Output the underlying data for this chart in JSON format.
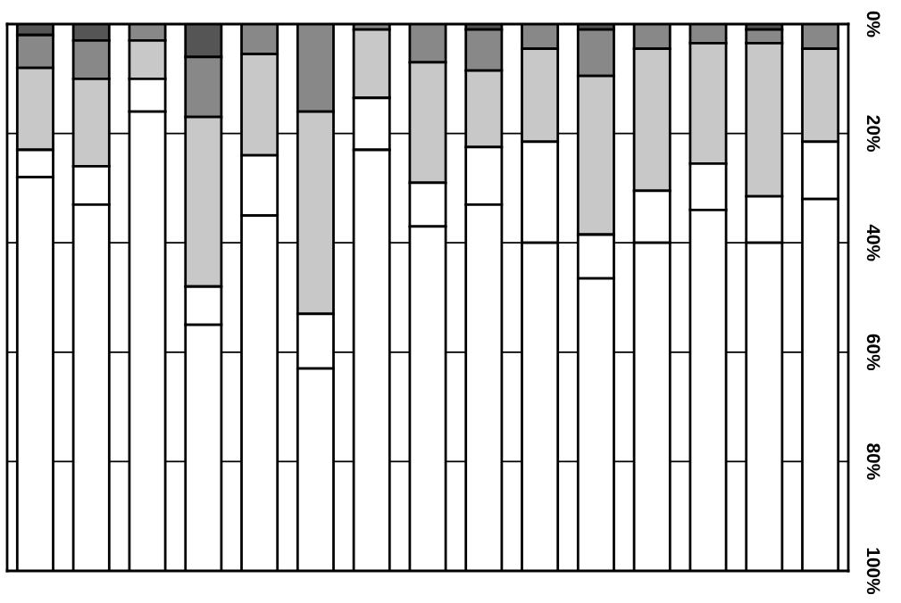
{
  "chart_data": {
    "type": "bar",
    "stacked": true,
    "categories": [
      null,
      null,
      null,
      null,
      null,
      null,
      null,
      null,
      null,
      null,
      null,
      null,
      null,
      null,
      null
    ],
    "series": [
      {
        "color": "#555555",
        "values": [
          2,
          3,
          0,
          6,
          null,
          null,
          0,
          0,
          1,
          0,
          1,
          0,
          0,
          1,
          null
        ]
      },
      {
        "color": "#888888",
        "values": [
          6,
          7,
          3,
          11,
          5.5,
          16,
          1,
          7,
          7.5,
          4.5,
          8.5,
          4.5,
          3.5,
          2.5,
          4.5
        ]
      },
      {
        "color": "#c8c8c8",
        "values": [
          15,
          16,
          7,
          31,
          18.5,
          37,
          12.5,
          22,
          14,
          17,
          29,
          26,
          22,
          28,
          17
        ]
      },
      {
        "color": "#ffffff",
        "values": [
          5,
          7,
          6,
          7,
          11,
          10,
          9.5,
          8,
          10.5,
          18.5,
          8,
          9.5,
          8.5,
          8.5,
          10.5
        ]
      },
      {
        "color": "#ffffff",
        "values": [
          72,
          67,
          84,
          45,
          65,
          37,
          77,
          63,
          67,
          60,
          53.5,
          60,
          66,
          60,
          68
        ]
      }
    ],
    "ylim": [
      100,
      0
    ],
    "yticks": [
      {
        "value": 0,
        "label": "0%"
      },
      {
        "value": 20,
        "label": "20%"
      },
      {
        "value": 40,
        "label": "40%"
      },
      {
        "value": 60,
        "label": "60%"
      },
      {
        "value": 80,
        "label": "80%"
      },
      {
        "value": 100,
        "label": "100%"
      }
    ],
    "grid": "y",
    "tick_labels": "y"
  }
}
